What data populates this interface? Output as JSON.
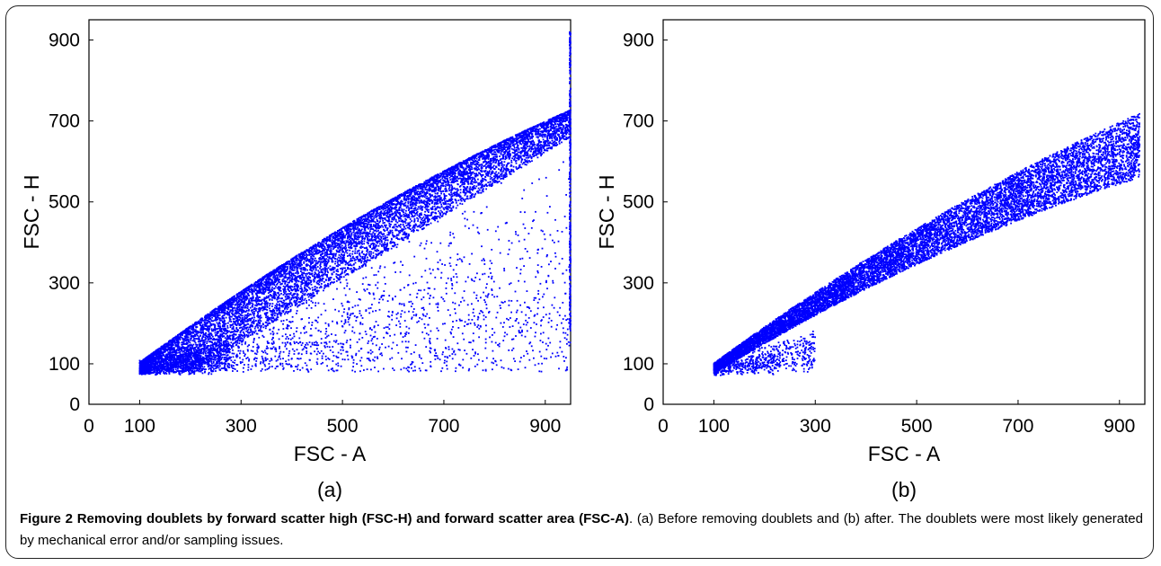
{
  "chart_data": [
    {
      "type": "scatter",
      "panel_label": "(a)",
      "xlabel": "FSC - A",
      "ylabel": "FSC - H",
      "xlim": [
        0,
        950
      ],
      "ylim": [
        0,
        950
      ],
      "xticks": [
        0,
        100,
        300,
        500,
        700,
        900
      ],
      "yticks": [
        0,
        100,
        300,
        500,
        700,
        900
      ],
      "marker_color": "#0000ff",
      "grid": false,
      "series": [
        {
          "points": [
            [
              100,
              95
            ],
            [
              150,
              115
            ],
            [
              200,
              160
            ],
            [
              300,
              240
            ],
            [
              400,
              330
            ],
            [
              500,
              420
            ],
            [
              600,
              520
            ],
            [
              700,
              620
            ],
            [
              800,
              710
            ],
            [
              900,
              780
            ],
            [
              950,
              800
            ],
            [
              200,
              110
            ],
            [
              300,
              150
            ],
            [
              400,
              210
            ],
            [
              500,
              280
            ],
            [
              600,
              380
            ],
            [
              700,
              480
            ],
            [
              800,
              580
            ],
            [
              900,
              680
            ],
            [
              700,
              300
            ],
            [
              800,
              400
            ],
            [
              600,
              250
            ],
            [
              450,
              90
            ],
            [
              550,
              150
            ],
            [
              850,
              300
            ],
            [
              900,
              200
            ],
            [
              950,
              920
            ],
            [
              950,
              200
            ],
            [
              950,
              100
            ]
          ]
        }
      ]
    },
    {
      "type": "scatter",
      "panel_label": "(b)",
      "xlabel": "FSC - A",
      "ylabel": "FSC - H",
      "xlim": [
        0,
        950
      ],
      "ylim": [
        0,
        950
      ],
      "xticks": [
        0,
        100,
        300,
        500,
        700,
        900
      ],
      "yticks": [
        0,
        100,
        300,
        500,
        700,
        900
      ],
      "marker_color": "#0000ff",
      "grid": false,
      "series": [
        {
          "points": [
            [
              100,
              95
            ],
            [
              150,
              110
            ],
            [
              200,
              150
            ],
            [
              300,
              235
            ],
            [
              400,
              320
            ],
            [
              500,
              410
            ],
            [
              600,
              510
            ],
            [
              700,
              600
            ],
            [
              800,
              690
            ],
            [
              900,
              770
            ],
            [
              940,
              800
            ],
            [
              200,
              90
            ],
            [
              300,
              170
            ],
            [
              400,
              260
            ],
            [
              500,
              350
            ],
            [
              600,
              440
            ],
            [
              700,
              530
            ],
            [
              800,
              620
            ],
            [
              900,
              700
            ],
            [
              940,
              720
            ]
          ]
        }
      ]
    }
  ],
  "caption": {
    "title": "Figure 2 Removing doublets by forward scatter high (FSC-H) and forward scatter area (FSC-A)",
    "text": ". (a) Before removing doublets and (b) after. The doublets were most likely generated by mechanical error and/or sampling issues."
  }
}
